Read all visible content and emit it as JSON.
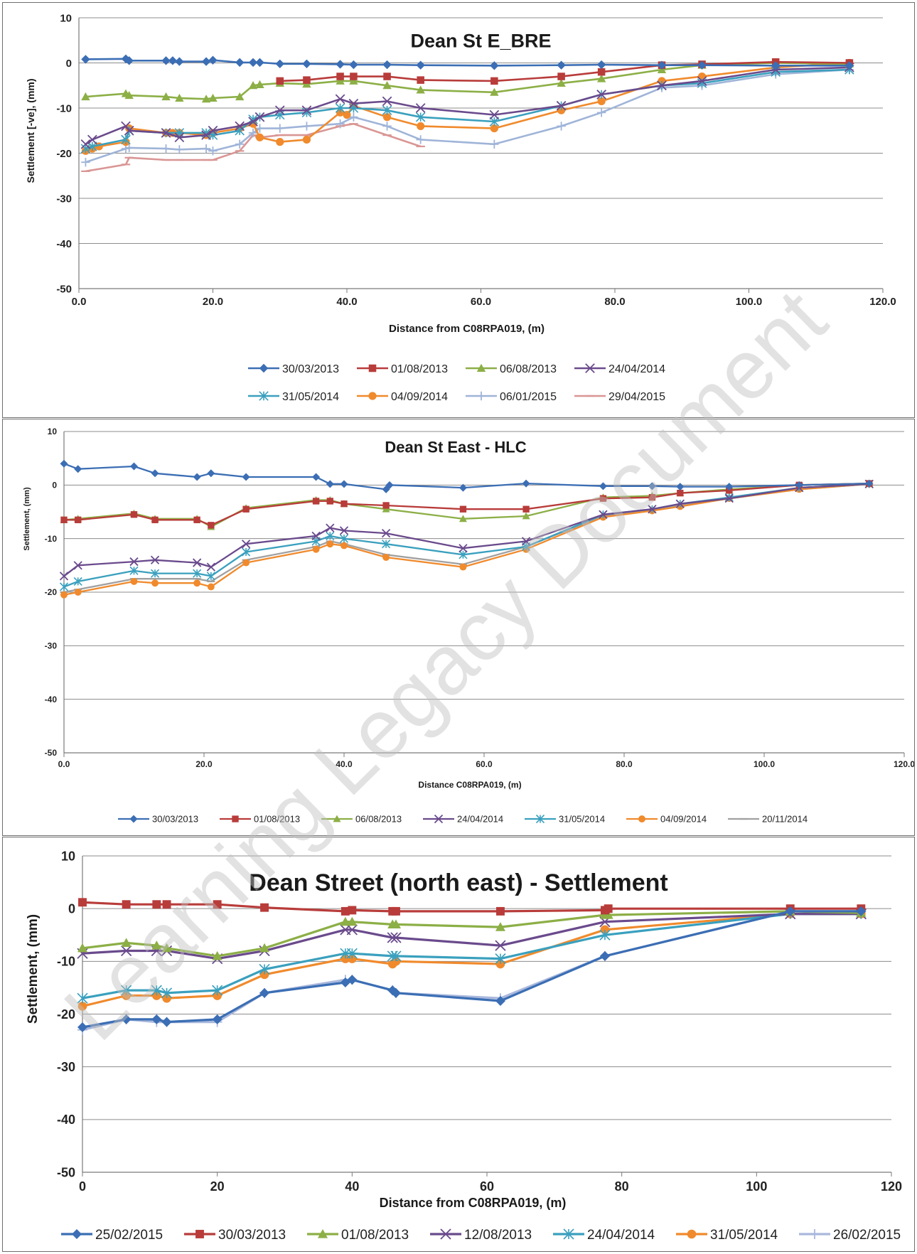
{
  "watermark": "Learning Legacy Document",
  "chart_data": [
    {
      "type": "line",
      "title": "Dean St E_BRE",
      "xlabel": "Distance from C08RPA019, (m)",
      "ylabel": "Settlement [-ve], (mm)",
      "xlim": [
        0,
        120
      ],
      "ylim": [
        -50,
        10
      ],
      "xticks": [
        "0.0",
        "20.0",
        "40.0",
        "60.0",
        "80.0",
        "100.0",
        "120.0"
      ],
      "yticks": [
        "10",
        "0",
        "-10",
        "-20",
        "-30",
        "-40",
        "-50"
      ],
      "grid": "horizontal",
      "legend": "bottom",
      "series": [
        {
          "name": "30/03/2013",
          "color": "#3b6eb4",
          "marker": "diamond",
          "x": [
            1,
            7,
            7.5,
            13,
            14,
            15,
            19,
            20,
            24,
            26,
            27,
            30,
            34,
            39,
            41,
            46,
            51,
            62,
            72,
            78,
            87,
            93,
            104,
            115
          ],
          "y": [
            0.8,
            0.9,
            0.5,
            0.5,
            0.5,
            0.3,
            0.3,
            0.6,
            0.1,
            0.1,
            0.1,
            -0.2,
            -0.2,
            -0.3,
            -0.4,
            -0.4,
            -0.5,
            -0.6,
            -0.5,
            -0.4,
            -0.5,
            -0.5,
            -0.6,
            -0.6
          ]
        },
        {
          "name": "01/08/2013",
          "color": "#b83c3a",
          "marker": "square",
          "x": [
            30,
            34,
            39,
            41,
            46,
            51,
            62,
            72,
            78,
            87,
            93,
            104,
            115
          ],
          "y": [
            -4,
            -3.8,
            -3,
            -3,
            -3,
            -3.8,
            -4,
            -3,
            -2,
            -0.5,
            -0.3,
            0.2,
            0
          ]
        },
        {
          "name": "06/08/2013",
          "color": "#8caf46",
          "marker": "triangle",
          "x": [
            1,
            7,
            7.5,
            13,
            15,
            19,
            20,
            24,
            26,
            27,
            30,
            34,
            39,
            41,
            46,
            51,
            62,
            72,
            78,
            87,
            93,
            104,
            115
          ],
          "y": [
            -7.5,
            -6.8,
            -7.2,
            -7.5,
            -7.8,
            -8,
            -7.8,
            -7.5,
            -5,
            -4.8,
            -4.5,
            -4.7,
            -4,
            -4,
            -5,
            -6,
            -6.5,
            -4.5,
            -3.5,
            -1.5,
            -0.5,
            0,
            -0.2
          ]
        },
        {
          "name": "24/04/2014",
          "color": "#6a4a8c",
          "marker": "x",
          "x": [
            1,
            2,
            7,
            7.5,
            13,
            15,
            19,
            20,
            24,
            26,
            27,
            30,
            34,
            39,
            41,
            46,
            51,
            62,
            72,
            78,
            87,
            93,
            104,
            115
          ],
          "y": [
            -18,
            -17,
            -14,
            -15,
            -15.5,
            -16.5,
            -16,
            -15,
            -14,
            -13,
            -12,
            -10.5,
            -10.5,
            -8,
            -9,
            -8.5,
            -10,
            -11.5,
            -9.5,
            -7,
            -5,
            -4,
            -1.5,
            -1
          ]
        },
        {
          "name": "31/05/2014",
          "color": "#3aa0be",
          "marker": "star",
          "x": [
            1,
            2,
            7,
            7.5,
            13,
            15,
            19,
            20,
            24,
            26,
            27,
            30,
            34,
            39,
            41,
            46,
            51,
            62,
            72,
            78,
            87,
            93,
            104,
            115
          ],
          "y": [
            -19,
            -18.5,
            -17,
            -15,
            -15.5,
            -15.5,
            -15.5,
            -16,
            -15,
            -12.5,
            -12,
            -11.5,
            -11,
            -10,
            -10,
            -10.5,
            -12,
            -13,
            -9.5,
            -7,
            -5,
            -4.5,
            -2,
            -1.5
          ]
        },
        {
          "name": "04/09/2014",
          "color": "#f08a2c",
          "marker": "circle",
          "x": [
            1,
            2,
            3,
            7,
            7.5,
            13,
            14,
            15,
            19,
            20,
            24,
            26,
            27,
            30,
            34,
            39,
            40,
            41,
            46,
            51,
            62,
            72,
            78,
            87,
            93,
            104,
            115
          ],
          "y": [
            -19.5,
            -19,
            -18.5,
            -17.5,
            -14.5,
            -15.5,
            -15.5,
            -15.5,
            -16,
            -15.5,
            -14.5,
            -13.5,
            -16.5,
            -17.5,
            -17,
            -11,
            -11.5,
            -9.5,
            -12,
            -14,
            -14.5,
            -10.5,
            -8.5,
            -4,
            -3,
            -1,
            0
          ]
        },
        {
          "name": "06/01/2015",
          "color": "#9fb4d8",
          "marker": "plus",
          "x": [
            1,
            7,
            7.5,
            13,
            15,
            19,
            20,
            24,
            26,
            27,
            30,
            34,
            39,
            41,
            46,
            51,
            62,
            72,
            78,
            87,
            93,
            104,
            115
          ],
          "y": [
            -22,
            -19,
            -18.8,
            -19,
            -19.2,
            -19,
            -19.5,
            -18,
            -15.5,
            -14.5,
            -14.5,
            -14,
            -13.5,
            -12,
            -14,
            -17,
            -18,
            -14,
            -11,
            -5.5,
            -5,
            -2.5,
            -1.5
          ]
        },
        {
          "name": "29/04/2015",
          "color": "#d99694",
          "marker": "dash",
          "x": [
            1,
            7,
            7.5,
            13,
            15,
            19,
            20,
            24,
            26,
            27,
            30,
            34,
            39,
            41,
            46,
            51
          ],
          "y": [
            -24,
            -22.5,
            -21,
            -21.5,
            -21.5,
            -21.5,
            -21.5,
            -19.5,
            -16,
            -16.5,
            -16,
            -16,
            -14,
            -13.5,
            -16,
            -18.5
          ]
        }
      ]
    },
    {
      "type": "line",
      "title": "Dean St East - HLC",
      "xlabel": "Distance C08RPA019, (m)",
      "ylabel": "Settlement, (mm)",
      "xlim": [
        0,
        120
      ],
      "ylim": [
        -50,
        10
      ],
      "xticks": [
        "0.0",
        "20.0",
        "40.0",
        "60.0",
        "80.0",
        "100.0",
        "120.0"
      ],
      "yticks": [
        "10",
        "0",
        "-10",
        "-20",
        "-30",
        "-40",
        "-50"
      ],
      "grid": "horizontal",
      "legend": "bottom",
      "series": [
        {
          "name": "30/03/2013",
          "color": "#3b6eb4",
          "marker": "diamond",
          "x": [
            0,
            2,
            10,
            13,
            19,
            21,
            26,
            36,
            38,
            40,
            46,
            46.5,
            57,
            66,
            77,
            84,
            88,
            95,
            105,
            115
          ],
          "y": [
            4,
            3,
            3.5,
            2.2,
            1.5,
            2.2,
            1.5,
            1.5,
            0.2,
            0.2,
            -0.8,
            0,
            -0.5,
            0.3,
            -0.2,
            -0.2,
            -0.3,
            -0.3,
            0,
            0.3
          ]
        },
        {
          "name": "01/08/2013",
          "color": "#b83c3a",
          "marker": "square",
          "x": [
            0,
            2,
            10,
            13,
            19,
            21,
            26,
            36,
            38,
            40,
            46,
            57,
            66,
            77,
            84,
            88,
            95,
            105,
            115
          ],
          "y": [
            -6.5,
            -6.5,
            -5.5,
            -6.5,
            -6.5,
            -7.5,
            -4.5,
            -3,
            -3,
            -3.5,
            -3.8,
            -4.5,
            -4.5,
            -2.5,
            -2.3,
            -1.5,
            -1,
            0,
            0.3
          ]
        },
        {
          "name": "06/08/2013",
          "color": "#8caf46",
          "marker": "triangle",
          "x": [
            0,
            2,
            10,
            13,
            19,
            21,
            26,
            36,
            38,
            40,
            46,
            57,
            66,
            77,
            84,
            88,
            95,
            105,
            115
          ],
          "y": [
            -6.5,
            -6.3,
            -5.3,
            -6.3,
            -6.3,
            -7.8,
            -4.3,
            -2.8,
            -2.8,
            -3.5,
            -4.5,
            -6.3,
            -5.8,
            -2.3,
            -2,
            -1.5,
            -0.8,
            0,
            0.3
          ]
        },
        {
          "name": "24/04/2014",
          "color": "#6a4a8c",
          "marker": "x",
          "x": [
            0,
            2,
            10,
            13,
            19,
            21,
            26,
            36,
            38,
            40,
            46,
            57,
            66,
            77,
            84,
            88,
            95,
            105,
            115
          ],
          "y": [
            -17,
            -15,
            -14.3,
            -14,
            -14.5,
            -15.3,
            -11,
            -9.5,
            -8,
            -8.5,
            -9,
            -11.8,
            -10.5,
            -5.5,
            -4.5,
            -3.5,
            -2.5,
            -0.5,
            0.2
          ]
        },
        {
          "name": "31/05/2014",
          "color": "#3aa0be",
          "marker": "star",
          "x": [
            0,
            2,
            10,
            13,
            19,
            21,
            26,
            36,
            38,
            40,
            46,
            57,
            66,
            77,
            84,
            88,
            95,
            105,
            115
          ],
          "y": [
            -19,
            -18,
            -16,
            -16.5,
            -16.5,
            -17,
            -12.5,
            -10.5,
            -9.5,
            -10,
            -11,
            -13,
            -11.5,
            -5.5,
            -4.5,
            -3.5,
            -2.3,
            -0.5,
            0.2
          ]
        },
        {
          "name": "04/09/2014",
          "color": "#f08a2c",
          "marker": "circle",
          "x": [
            0,
            2,
            10,
            13,
            19,
            21,
            26,
            36,
            38,
            40,
            46,
            57,
            66,
            77,
            84,
            88,
            95,
            105,
            115
          ],
          "y": [
            -20.5,
            -20,
            -18,
            -18.3,
            -18.3,
            -19,
            -14.5,
            -12,
            -11,
            -11.3,
            -13.5,
            -15.3,
            -12,
            -6,
            -4.8,
            -4,
            -2.5,
            -0.8,
            0.2
          ]
        },
        {
          "name": "20/11/2014",
          "color": "#a0a0a0",
          "marker": "dash",
          "x": [
            0,
            2,
            10,
            13,
            19,
            21,
            26,
            36,
            38,
            40,
            46,
            57,
            66,
            77,
            84,
            88,
            95,
            105,
            115
          ],
          "y": [
            -20,
            -19.5,
            -17.5,
            -17.5,
            -17.5,
            -18,
            -14,
            -11.5,
            -10.5,
            -11,
            -13,
            -14.8,
            -11.5,
            -5.8,
            -4.7,
            -3.8,
            -2.5,
            -0.8,
            0.2
          ]
        }
      ]
    },
    {
      "type": "line",
      "title": "Dean Street (north east) -  Settlement",
      "xlabel": "Distance from C08RPA019, (m)",
      "ylabel": "Settlement, (mm)",
      "xlim": [
        0,
        120
      ],
      "ylim": [
        -50,
        10
      ],
      "xticks": [
        "0",
        "20",
        "40",
        "60",
        "80",
        "100",
        "120"
      ],
      "yticks": [
        "10",
        "0",
        "-10",
        "-20",
        "-30",
        "-40",
        "-50"
      ],
      "grid": "horizontal",
      "legend": "bottom",
      "series": [
        {
          "name": "25/02/2015",
          "color": "#3b6eb4",
          "marker": "diamond",
          "x": [
            0,
            6.5,
            11,
            12.5,
            20,
            27,
            39,
            40,
            46,
            46.5,
            62,
            77.5,
            105,
            115.5
          ],
          "y": [
            -22.5,
            -21,
            -21,
            -21.5,
            -21,
            -16,
            -14,
            -13.5,
            -15.5,
            -16,
            -17.5,
            -9,
            -0.5,
            -0.5
          ]
        },
        {
          "name": "30/03/2013",
          "color": "#b83c3a",
          "marker": "square",
          "x": [
            0,
            6.5,
            11,
            12.5,
            20,
            27,
            39,
            40,
            46,
            46.5,
            62,
            77.5,
            78,
            105,
            115.5
          ],
          "y": [
            1.2,
            0.8,
            0.8,
            0.8,
            0.8,
            0.2,
            -0.5,
            -0.3,
            -0.5,
            -0.5,
            -0.5,
            -0.3,
            0,
            0,
            0
          ]
        },
        {
          "name": "01/08/2013",
          "color": "#8caf46",
          "marker": "triangle",
          "x": [
            0,
            6.5,
            11,
            12.5,
            20,
            27,
            39,
            40,
            46,
            46.5,
            62,
            77.5,
            78,
            105,
            115.5
          ],
          "y": [
            -7.5,
            -6.5,
            -7,
            -7.5,
            -9,
            -7.5,
            -2.5,
            -2.5,
            -3,
            -3,
            -3.5,
            -1.2,
            -1.2,
            -0.5,
            -0.8
          ]
        },
        {
          "name": "12/08/2013",
          "color": "#6a4a8c",
          "marker": "x",
          "x": [
            0,
            6.5,
            11,
            12.5,
            20,
            27,
            39,
            40,
            46,
            46.5,
            62,
            77.5,
            105,
            115.5
          ],
          "y": [
            -8.5,
            -8,
            -8,
            -8,
            -9.5,
            -8,
            -4,
            -4,
            -5.5,
            -5.5,
            -7,
            -2.5,
            -1,
            -1
          ]
        },
        {
          "name": "24/04/2014",
          "color": "#3aa0be",
          "marker": "star",
          "x": [
            0,
            6.5,
            11,
            12.5,
            20,
            27,
            39,
            40,
            46,
            46.5,
            62,
            77.5,
            105,
            115.5
          ],
          "y": [
            -17,
            -15.5,
            -15.5,
            -16,
            -15.5,
            -11.5,
            -8.5,
            -8.5,
            -9,
            -9,
            -9.5,
            -5,
            -1,
            -1
          ]
        },
        {
          "name": "31/05/2014",
          "color": "#f08a2c",
          "marker": "circle",
          "x": [
            0,
            6.5,
            11,
            12.5,
            20,
            27,
            39,
            40,
            46,
            46.5,
            62,
            77.5,
            105,
            115.5
          ],
          "y": [
            -18.5,
            -16.5,
            -16.5,
            -17,
            -16.5,
            -12.5,
            -9.5,
            -9.5,
            -10.5,
            -10,
            -10.5,
            -4,
            -1,
            -1
          ]
        },
        {
          "name": "26/02/2015",
          "color": "#a9b8dc",
          "marker": "plus",
          "x": [
            0,
            6.5,
            11,
            12.5,
            20,
            27,
            39,
            40,
            46,
            46.5,
            62,
            77.5,
            105,
            115.5
          ],
          "y": [
            -23,
            -21,
            -21.5,
            -21.5,
            -21.5,
            -16,
            -13.5,
            -13.5,
            -15.5,
            -16,
            -17,
            -9,
            -0.5,
            -0.5
          ]
        }
      ]
    }
  ]
}
